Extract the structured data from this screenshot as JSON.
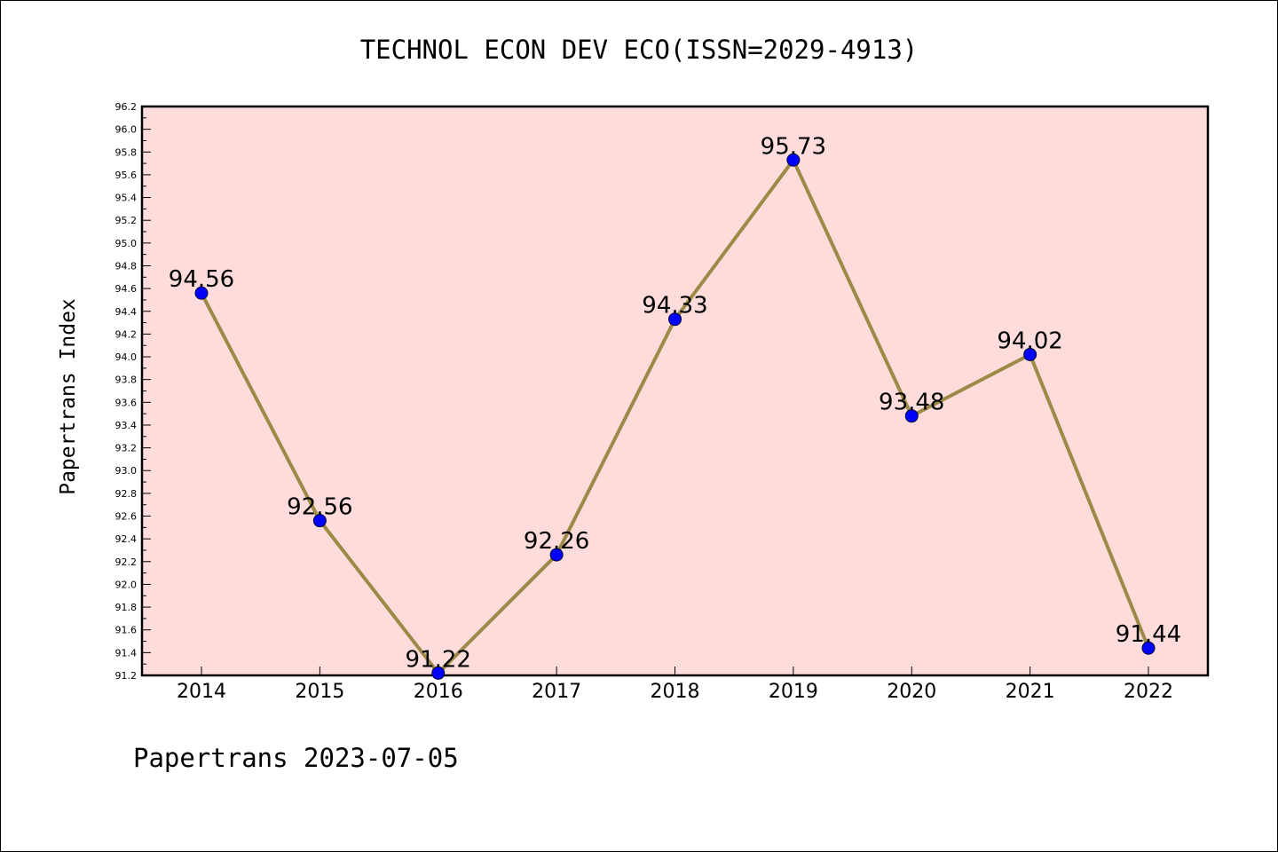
{
  "footer": {
    "text": "Papertrans 2023-07-05"
  },
  "chart_data": {
    "type": "line",
    "title": "TECHNOL ECON DEV ECO(ISSN=2029-4913)",
    "ylabel": "Papertrans Index",
    "xlabel": "",
    "x": [
      "2014",
      "2015",
      "2016",
      "2017",
      "2018",
      "2019",
      "2020",
      "2021",
      "2022"
    ],
    "series": [
      {
        "values": [
          94.56,
          92.56,
          91.22,
          92.26,
          94.33,
          95.73,
          93.48,
          94.02,
          91.44
        ],
        "line_color": "#9c8a46",
        "marker_color": "#0000ff"
      }
    ],
    "data_labels": [
      "94.56",
      "92.56",
      "91.22",
      "92.26",
      "94.33",
      "95.73",
      "93.48",
      "94.02",
      "91.44"
    ],
    "ylim": [
      91.2,
      96.2
    ],
    "yticks": [
      "91.2",
      "91.4",
      "91.6",
      "91.8",
      "92.0",
      "92.2",
      "92.4",
      "92.6",
      "92.8",
      "93.0",
      "93.2",
      "93.4",
      "93.6",
      "93.8",
      "94.0",
      "94.2",
      "94.4",
      "94.6",
      "94.8",
      "95.0",
      "95.2",
      "95.4",
      "95.6",
      "95.8",
      "96.0",
      "96.2"
    ],
    "grid": false,
    "legend": "none",
    "plot_background": "#ffdcdc",
    "page_background": "#ffffff"
  }
}
